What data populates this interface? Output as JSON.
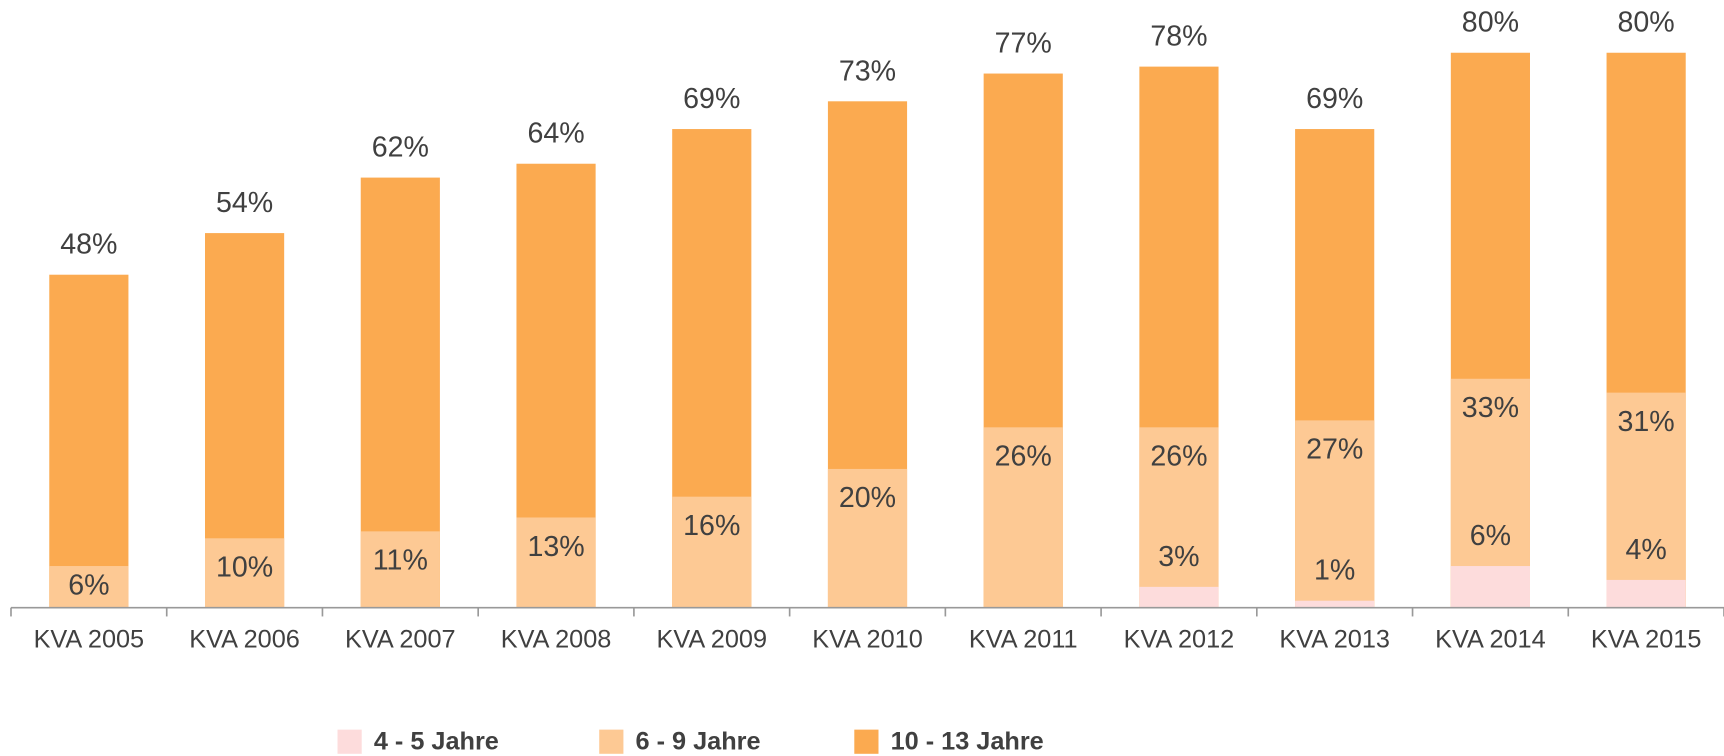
{
  "chart_data": {
    "type": "bar",
    "overlap": true,
    "categories": [
      "KVA 2005",
      "KVA 2006",
      "KVA 2007",
      "KVA 2008",
      "KVA 2009",
      "KVA 2010",
      "KVA 2011",
      "KVA 2012",
      "KVA 2013",
      "KVA 2014",
      "KVA 2015"
    ],
    "series": [
      {
        "name": "4 - 5 Jahre",
        "color": "#fddcdc",
        "values": [
          null,
          null,
          null,
          null,
          null,
          null,
          null,
          3,
          1,
          6,
          4
        ],
        "value_labels": [
          null,
          null,
          null,
          null,
          null,
          null,
          null,
          "3%",
          "1%",
          "6%",
          "4%"
        ]
      },
      {
        "name": "6 - 9 Jahre",
        "color": "#fdc994",
        "values": [
          6,
          10,
          11,
          13,
          16,
          20,
          26,
          26,
          27,
          33,
          31
        ],
        "value_labels": [
          "6%",
          "10%",
          "11%",
          "13%",
          "16%",
          "20%",
          "26%",
          "26%",
          "27%",
          "33%",
          "31%"
        ]
      },
      {
        "name": "10 - 13 Jahre",
        "color": "#fbaa50",
        "values": [
          48,
          54,
          62,
          64,
          69,
          73,
          77,
          78,
          69,
          80,
          80
        ],
        "value_labels": [
          "48%",
          "54%",
          "62%",
          "64%",
          "69%",
          "73%",
          "77%",
          "78%",
          "69%",
          "80%",
          "80%"
        ]
      }
    ],
    "ylim": [
      0,
      80
    ],
    "legend": "bottom"
  }
}
